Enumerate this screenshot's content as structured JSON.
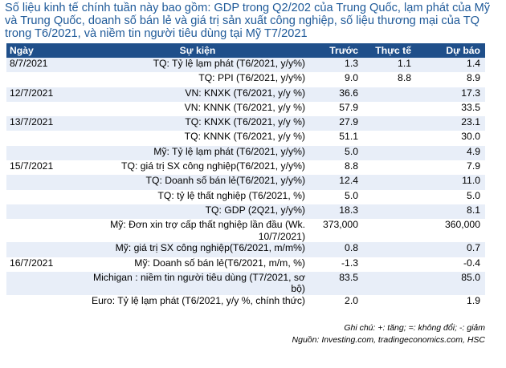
{
  "title": "Số  liệu kinh tế chính tuần này bao gồm: GDP trong Q2/202 của Trung Quốc, lạm phát của Mỹ và Trung Quốc, doanh số bán lẻ và giá trị sản xuất công nghiệp, số liệu thương mại của TQ trong T6/2021, và niềm tin người tiêu dùng tại Mỹ T7/2021",
  "headers": [
    "Ngày",
    "Sự kiện",
    "Trước",
    "Thực tế",
    "Dự báo"
  ],
  "rows": [
    {
      "date": "8/7/2021",
      "event": "TQ: Tỷ lệ lạm phát (T6/2021, y/y%)",
      "prev": "1.3",
      "actual": "1.1",
      "forecast": "1.4"
    },
    {
      "date": "",
      "event": "TQ: PPI (T6/2021, y/y%)",
      "prev": "9.0",
      "actual": "8.8",
      "forecast": "8.9"
    },
    {
      "date": "12/7/2021",
      "event": "VN: KNXK (T6/2021, y/y %)",
      "prev": "36.6",
      "actual": "",
      "forecast": "17.3"
    },
    {
      "date": "",
      "event": "VN: KNNK (T6/2021, y/y %)",
      "prev": "57.9",
      "actual": "",
      "forecast": "33.5"
    },
    {
      "date": "13/7/2021",
      "event": "TQ: KNXK (T6/2021, y/y %)",
      "prev": "27.9",
      "actual": "",
      "forecast": "23.1"
    },
    {
      "date": "",
      "event": "TQ: KNNK (T6/2021, y/y %)",
      "prev": "51.1",
      "actual": "",
      "forecast": "30.0"
    },
    {
      "date": "",
      "event": "Mỹ: Tỷ lệ lạm phát (T6/2021, y/y%)",
      "prev": "5.0",
      "actual": "",
      "forecast": "4.9"
    },
    {
      "date": "15/7/2021",
      "event": "TQ: giá trị SX công nghiệp(T6/2021, y/y%)",
      "prev": "8.8",
      "actual": "",
      "forecast": "7.9"
    },
    {
      "date": "",
      "event": "TQ: Doanh số bán lẻ(T6/2021, y/y%)",
      "prev": "12.4",
      "actual": "",
      "forecast": "11.0"
    },
    {
      "date": "",
      "event": "TQ: tỷ lệ thất nghiệp (T6/2021, %)",
      "prev": "5.0",
      "actual": "",
      "forecast": "5.0"
    },
    {
      "date": "",
      "event": "TQ: GDP (2Q21, y/y%)",
      "prev": "18.3",
      "actual": "",
      "forecast": "8.1"
    },
    {
      "date": "",
      "event": "Mỹ: Đơn xin trợ cấp thất nghiệp lần đầu (Wk. 10/7/2021)",
      "prev": "373,000",
      "actual": "",
      "forecast": "360,000"
    },
    {
      "date": "",
      "event": "Mỹ: giá trị SX công nghiệp(T6/2021, m/m%)",
      "prev": "0.8",
      "actual": "",
      "forecast": "0.7"
    },
    {
      "date": "16/7/2021",
      "event": "Mỹ: Doanh số bán lẻ(T6/2021, m/m, %)",
      "prev": "-1.3",
      "actual": "",
      "forecast": "-0.4"
    },
    {
      "date": "",
      "event": "Michigan : niềm tin người tiêu dùng (T7/2021, sơ bộ)",
      "prev": "83.5",
      "actual": "",
      "forecast": "85.0"
    },
    {
      "date": "",
      "event": "Euro: Tỷ lệ lạm phát (T6/2021, y/y %, chính thức)",
      "prev": "2.0",
      "actual": "",
      "forecast": "1.9"
    }
  ],
  "note": "Ghi chú: +: tăng; =: không đổi; -: giảm",
  "source": "Nguồn: Investing.com, tradingeconomics.com, HSC",
  "colors": {
    "title": "#1f5a99",
    "header_bg": "#1f4f8a",
    "stripe": "#e8eef8"
  }
}
